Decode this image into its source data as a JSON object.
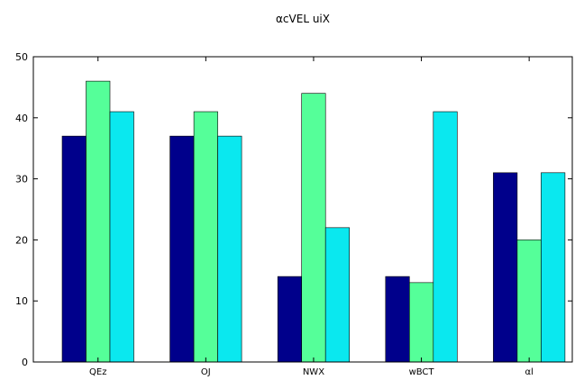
{
  "chart_data": {
    "type": "bar",
    "title": "αcVEL uiX",
    "xlabel": "",
    "ylabel": "",
    "categories": [
      "QEz",
      "OJ",
      "NWX",
      "wBCT",
      "αl"
    ],
    "series": [
      {
        "values": [
          37,
          37,
          14,
          14,
          31
        ],
        "color": "#00008b"
      },
      {
        "values": [
          46,
          41,
          44,
          13,
          20
        ],
        "color": "#55ff99"
      },
      {
        "values": [
          41,
          37,
          22,
          41,
          31
        ],
        "color": "#0ae8ef"
      }
    ],
    "ylim": [
      0,
      50
    ],
    "yticks": [
      0,
      10,
      20,
      30,
      40,
      50
    ],
    "grid": false
  }
}
